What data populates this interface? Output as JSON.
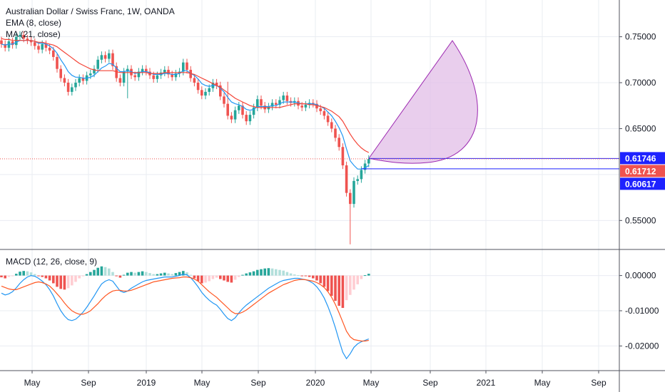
{
  "header": {
    "title": "Australian Dollar / Swiss Franc, 1W, OANDA",
    "indicators": [
      "EMA (8, close)",
      "MA (21, close)"
    ]
  },
  "macd_panel": {
    "label": "MACD (12, 26, close, 9)"
  },
  "colors": {
    "up": "#26a69a",
    "down": "#ef5350",
    "ema": "#2196f3",
    "ma": "#f44336",
    "grid": "#e9ecf2",
    "shape_fill": "#e1bee7",
    "shape_stroke": "#9c27b0",
    "hline": "#1e22ff",
    "macd_line": "#2196f3",
    "signal_line": "#ff5722"
  },
  "chart_data": [
    {
      "type": "candlestick",
      "title": "Australian Dollar / Swiss Franc, 1W, OANDA",
      "y_ticks": [
        "0.75000",
        "0.70000",
        "0.65000",
        "0.55000"
      ],
      "ylim": [
        0.52,
        0.79
      ],
      "x_ticks": [
        "May",
        "Sep",
        "2019",
        "May",
        "Sep",
        "2020",
        "May",
        "Sep",
        "2021",
        "May",
        "Sep"
      ],
      "price_labels": [
        {
          "value": "0.61746",
          "color": "#1e22ff"
        },
        {
          "value": "0.61712",
          "color": "#ef5350"
        },
        {
          "value": "0.60617",
          "color": "#1e22ff"
        }
      ],
      "last_close": 0.6171,
      "upper_level": 0.61746,
      "lower_level": 0.60617,
      "close_series": [
        0.742,
        0.738,
        0.745,
        0.741,
        0.75,
        0.752,
        0.748,
        0.746,
        0.744,
        0.74,
        0.736,
        0.742,
        0.738,
        0.735,
        0.728,
        0.715,
        0.705,
        0.7,
        0.69,
        0.695,
        0.7,
        0.705,
        0.702,
        0.708,
        0.71,
        0.715,
        0.725,
        0.73,
        0.726,
        0.732,
        0.718,
        0.705,
        0.7,
        0.712,
        0.715,
        0.708,
        0.706,
        0.712,
        0.715,
        0.712,
        0.708,
        0.704,
        0.708,
        0.711,
        0.714,
        0.709,
        0.706,
        0.71,
        0.712,
        0.722,
        0.714,
        0.705,
        0.7,
        0.692,
        0.686,
        0.69,
        0.694,
        0.7,
        0.697,
        0.685,
        0.677,
        0.664,
        0.66,
        0.67,
        0.675,
        0.665,
        0.658,
        0.665,
        0.673,
        0.682,
        0.675,
        0.671,
        0.674,
        0.678,
        0.676,
        0.681,
        0.686,
        0.68,
        0.678,
        0.68,
        0.675,
        0.673,
        0.676,
        0.678,
        0.677,
        0.672,
        0.669,
        0.664,
        0.657,
        0.65,
        0.64,
        0.63,
        0.61,
        0.58,
        0.568,
        0.593,
        0.595,
        0.605,
        0.612,
        0.617
      ],
      "ema_8": [
        0.742,
        0.741,
        0.742,
        0.742,
        0.744,
        0.746,
        0.746,
        0.746,
        0.746,
        0.745,
        0.743,
        0.743,
        0.742,
        0.74,
        0.737,
        0.732,
        0.725,
        0.719,
        0.712,
        0.708,
        0.706,
        0.706,
        0.705,
        0.705,
        0.706,
        0.708,
        0.712,
        0.716,
        0.718,
        0.721,
        0.72,
        0.716,
        0.712,
        0.712,
        0.713,
        0.712,
        0.71,
        0.711,
        0.712,
        0.712,
        0.711,
        0.709,
        0.709,
        0.709,
        0.71,
        0.71,
        0.709,
        0.709,
        0.71,
        0.713,
        0.713,
        0.71,
        0.708,
        0.704,
        0.699,
        0.697,
        0.696,
        0.697,
        0.697,
        0.694,
        0.69,
        0.684,
        0.679,
        0.677,
        0.676,
        0.674,
        0.671,
        0.67,
        0.671,
        0.674,
        0.674,
        0.674,
        0.674,
        0.675,
        0.675,
        0.677,
        0.679,
        0.679,
        0.679,
        0.679,
        0.678,
        0.677,
        0.677,
        0.677,
        0.677,
        0.676,
        0.674,
        0.672,
        0.668,
        0.664,
        0.658,
        0.651,
        0.642,
        0.628,
        0.615,
        0.61,
        0.606,
        0.606,
        0.607,
        0.61
      ],
      "ma_21": [
        0.748,
        0.747,
        0.747,
        0.746,
        0.746,
        0.746,
        0.746,
        0.746,
        0.746,
        0.745,
        0.744,
        0.744,
        0.743,
        0.742,
        0.741,
        0.739,
        0.736,
        0.733,
        0.73,
        0.727,
        0.724,
        0.721,
        0.719,
        0.717,
        0.715,
        0.714,
        0.713,
        0.713,
        0.713,
        0.713,
        0.713,
        0.712,
        0.711,
        0.711,
        0.711,
        0.711,
        0.711,
        0.711,
        0.711,
        0.711,
        0.71,
        0.71,
        0.71,
        0.71,
        0.711,
        0.711,
        0.711,
        0.711,
        0.711,
        0.711,
        0.711,
        0.71,
        0.709,
        0.707,
        0.705,
        0.703,
        0.701,
        0.699,
        0.697,
        0.695,
        0.692,
        0.689,
        0.686,
        0.683,
        0.681,
        0.679,
        0.677,
        0.675,
        0.674,
        0.673,
        0.673,
        0.673,
        0.673,
        0.673,
        0.673,
        0.673,
        0.674,
        0.675,
        0.676,
        0.677,
        0.677,
        0.677,
        0.677,
        0.676,
        0.676,
        0.675,
        0.674,
        0.673,
        0.671,
        0.669,
        0.666,
        0.663,
        0.658,
        0.651,
        0.644,
        0.638,
        0.633,
        0.629,
        0.626,
        0.624
      ]
    },
    {
      "type": "bar",
      "title": "MACD (12, 26, close, 9)",
      "y_ticks": [
        "0.00000",
        "-0.01000",
        "-0.02000"
      ],
      "ylim": [
        -0.027,
        0.007
      ],
      "histogram": [
        -0.0005,
        -0.0008,
        -0.0004,
        -0.0002,
        0.0005,
        0.0011,
        0.0013,
        0.0012,
        0.0009,
        0.0004,
        -0.0002,
        -0.0004,
        -0.0008,
        -0.0014,
        -0.0022,
        -0.0032,
        -0.0038,
        -0.004,
        -0.0036,
        -0.0028,
        -0.0018,
        -0.0008,
        -0.0002,
        0.0004,
        0.001,
        0.0016,
        0.0022,
        0.0026,
        0.0024,
        0.002,
        0.001,
        -0.0002,
        -0.0006,
        0.0002,
        0.0008,
        0.001,
        0.0008,
        0.001,
        0.0012,
        0.001,
        0.0007,
        0.0004,
        0.0004,
        0.0006,
        0.0008,
        0.0006,
        0.0004,
        0.0007,
        0.001,
        0.0013,
        0.0009,
        0.0002,
        -0.0008,
        -0.0016,
        -0.0022,
        -0.002,
        -0.0016,
        -0.001,
        -0.0006,
        -0.001,
        -0.0014,
        -0.0018,
        -0.002,
        -0.0012,
        -0.0004,
        0.0002,
        0.0006,
        0.0009,
        0.0012,
        0.0016,
        0.0018,
        0.002,
        0.0021,
        0.002,
        0.0018,
        0.0016,
        0.0014,
        0.001,
        0.0006,
        0.0003,
        0.0001,
        -0.0001,
        -0.0002,
        -0.0004,
        -0.0008,
        -0.0014,
        -0.0022,
        -0.0032,
        -0.0044,
        -0.0058,
        -0.0072,
        -0.0086,
        -0.0092,
        -0.007,
        -0.0055,
        -0.004,
        -0.0025,
        -0.001,
        0.0001,
        0.0005
      ],
      "macd": [
        -0.005,
        -0.0055,
        -0.0052,
        -0.0046,
        -0.0035,
        -0.0022,
        -0.0012,
        -0.0004,
        0.0,
        -0.0002,
        -0.0008,
        -0.0016,
        -0.0026,
        -0.004,
        -0.0058,
        -0.008,
        -0.01,
        -0.0115,
        -0.0125,
        -0.0128,
        -0.0124,
        -0.0115,
        -0.0104,
        -0.009,
        -0.0074,
        -0.0058,
        -0.004,
        -0.0024,
        -0.0016,
        -0.0012,
        -0.0016,
        -0.003,
        -0.0044,
        -0.0048,
        -0.0044,
        -0.0036,
        -0.003,
        -0.0024,
        -0.0018,
        -0.0014,
        -0.0012,
        -0.001,
        -0.0008,
        -0.0006,
        -0.0004,
        -0.0004,
        -0.0004,
        -0.0002,
        0.0,
        0.0004,
        0.0002,
        -0.0006,
        -0.0018,
        -0.0032,
        -0.0048,
        -0.006,
        -0.007,
        -0.0078,
        -0.0084,
        -0.0096,
        -0.011,
        -0.0122,
        -0.0128,
        -0.012,
        -0.0106,
        -0.0094,
        -0.0084,
        -0.0076,
        -0.0068,
        -0.006,
        -0.0052,
        -0.0044,
        -0.0036,
        -0.003,
        -0.0024,
        -0.0018,
        -0.0014,
        -0.0012,
        -0.001,
        -0.0008,
        -0.0008,
        -0.001,
        -0.0012,
        -0.0016,
        -0.0022,
        -0.0032,
        -0.0046,
        -0.0064,
        -0.0088,
        -0.0116,
        -0.0148,
        -0.0184,
        -0.0218,
        -0.0236,
        -0.0222,
        -0.0204,
        -0.0194,
        -0.0188,
        -0.0184,
        -0.018
      ],
      "signal": [
        -0.003,
        -0.0034,
        -0.0038,
        -0.004,
        -0.004,
        -0.0036,
        -0.0032,
        -0.0028,
        -0.0024,
        -0.002,
        -0.0018,
        -0.002,
        -0.0024,
        -0.003,
        -0.004,
        -0.0052,
        -0.0064,
        -0.0078,
        -0.009,
        -0.01,
        -0.0106,
        -0.011,
        -0.011,
        -0.0106,
        -0.01,
        -0.009,
        -0.008,
        -0.0068,
        -0.0058,
        -0.005,
        -0.0044,
        -0.0042,
        -0.0042,
        -0.0044,
        -0.0044,
        -0.0042,
        -0.0038,
        -0.0034,
        -0.003,
        -0.0026,
        -0.0022,
        -0.0018,
        -0.0016,
        -0.0014,
        -0.0012,
        -0.001,
        -0.0008,
        -0.0007,
        -0.0006,
        -0.0004,
        -0.0004,
        -0.0006,
        -0.001,
        -0.0016,
        -0.0026,
        -0.0036,
        -0.0046,
        -0.0054,
        -0.0062,
        -0.0072,
        -0.0082,
        -0.0092,
        -0.0102,
        -0.0108,
        -0.0108,
        -0.0104,
        -0.0098,
        -0.009,
        -0.0082,
        -0.0074,
        -0.0066,
        -0.0058,
        -0.005,
        -0.0044,
        -0.0038,
        -0.0032,
        -0.0026,
        -0.0022,
        -0.0018,
        -0.0014,
        -0.0012,
        -0.0011,
        -0.0012,
        -0.0014,
        -0.0016,
        -0.002,
        -0.0026,
        -0.0034,
        -0.0046,
        -0.0062,
        -0.0082,
        -0.0106,
        -0.0132,
        -0.0158,
        -0.0174,
        -0.0182,
        -0.0184,
        -0.0186,
        -0.0186,
        -0.0184
      ]
    }
  ]
}
